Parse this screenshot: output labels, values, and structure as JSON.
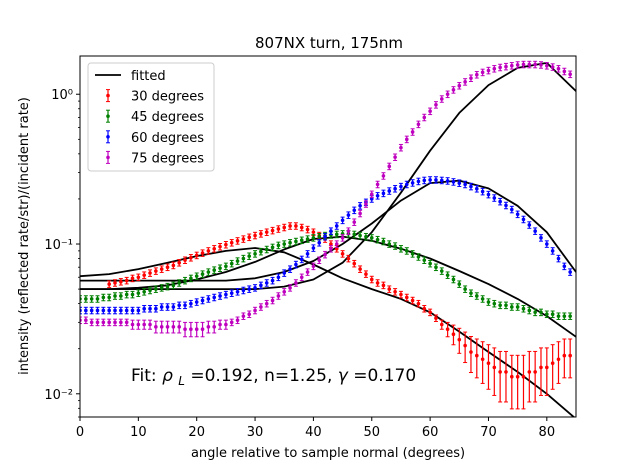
{
  "chart_data": {
    "type": "scatter",
    "title": "807NX turn, 175nm",
    "xlabel": "angle relative to sample normal (degrees)",
    "ylabel": "intensity (reflected rate/str)/(incident rate)",
    "xlim": [
      0,
      85
    ],
    "ylim": [
      0.007,
      1.8
    ],
    "yscale": "log",
    "xticks": [
      0,
      10,
      20,
      30,
      40,
      50,
      60,
      70,
      80
    ],
    "yticks": [
      {
        "value": 0.01,
        "label": "10⁻²"
      },
      {
        "value": 0.1,
        "label": "10⁻¹"
      },
      {
        "value": 1,
        "label": "10⁰"
      }
    ],
    "legend": {
      "position": "top-left",
      "entries": [
        "fitted",
        "30 degrees",
        "45 degrees",
        "60 degrees",
        "75 degrees"
      ]
    },
    "annotation": {
      "prefix": "Fit: ",
      "rho_symbol": "ρ",
      "rho_sub": "L",
      "rest1": "=0.192, n=1.25, ",
      "gamma_symbol": "γ",
      "rest2": "=0.170"
    },
    "colors": {
      "30": "#ff0000",
      "45": "#008000",
      "60": "#0000ff",
      "75": "#bf00bf",
      "fitted": "#000000"
    },
    "series": [
      {
        "name": "30 degrees",
        "color": "#ff0000",
        "x": [
          5,
          6,
          7,
          8,
          9,
          10,
          11,
          12,
          13,
          14,
          15,
          16,
          17,
          18,
          19,
          20,
          21,
          22,
          23,
          24,
          25,
          26,
          27,
          28,
          29,
          30,
          31,
          32,
          33,
          34,
          35,
          36,
          37,
          38,
          39,
          40,
          41,
          42,
          43,
          44,
          45,
          46,
          47,
          48,
          49,
          50,
          51,
          52,
          53,
          54,
          55,
          56,
          57,
          58,
          59,
          60,
          61,
          62,
          63,
          64,
          65,
          66,
          67,
          68,
          69,
          70,
          71,
          72,
          73,
          74,
          75,
          76,
          77,
          78,
          79,
          80,
          81,
          82,
          83,
          84
        ],
        "y": [
          0.054,
          0.055,
          0.056,
          0.057,
          0.059,
          0.06,
          0.062,
          0.064,
          0.066,
          0.068,
          0.07,
          0.072,
          0.075,
          0.078,
          0.081,
          0.084,
          0.087,
          0.09,
          0.093,
          0.096,
          0.099,
          0.102,
          0.105,
          0.108,
          0.111,
          0.114,
          0.117,
          0.12,
          0.123,
          0.126,
          0.129,
          0.132,
          0.132,
          0.129,
          0.125,
          0.12,
          0.114,
          0.108,
          0.1,
          0.093,
          0.086,
          0.08,
          0.074,
          0.068,
          0.063,
          0.058,
          0.055,
          0.053,
          0.05,
          0.048,
          0.046,
          0.044,
          0.042,
          0.04,
          0.037,
          0.035,
          0.032,
          0.029,
          0.027,
          0.025,
          0.023,
          0.021,
          0.019,
          0.018,
          0.017,
          0.016,
          0.015,
          0.014,
          0.014,
          0.013,
          0.013,
          0.013,
          0.014,
          0.014,
          0.015,
          0.015,
          0.016,
          0.017,
          0.018,
          0.018
        ]
      },
      {
        "name": "45 degrees",
        "color": "#008000",
        "x": [
          0,
          1,
          2,
          3,
          4,
          5,
          6,
          7,
          8,
          9,
          10,
          11,
          12,
          13,
          14,
          15,
          16,
          17,
          18,
          19,
          20,
          21,
          22,
          23,
          24,
          25,
          26,
          27,
          28,
          29,
          30,
          31,
          32,
          33,
          34,
          35,
          36,
          37,
          38,
          39,
          40,
          41,
          42,
          43,
          44,
          45,
          46,
          47,
          48,
          49,
          50,
          51,
          52,
          53,
          54,
          55,
          56,
          57,
          58,
          59,
          60,
          61,
          62,
          63,
          64,
          65,
          66,
          67,
          68,
          69,
          70,
          71,
          72,
          73,
          74,
          75,
          76,
          77,
          78,
          79,
          80,
          81,
          82,
          83,
          84
        ],
        "y": [
          0.043,
          0.043,
          0.043,
          0.043,
          0.044,
          0.044,
          0.045,
          0.045,
          0.046,
          0.046,
          0.047,
          0.048,
          0.049,
          0.05,
          0.051,
          0.052,
          0.053,
          0.055,
          0.057,
          0.059,
          0.061,
          0.063,
          0.065,
          0.067,
          0.069,
          0.071,
          0.074,
          0.077,
          0.08,
          0.083,
          0.086,
          0.089,
          0.092,
          0.095,
          0.098,
          0.1,
          0.102,
          0.104,
          0.106,
          0.108,
          0.11,
          0.112,
          0.114,
          0.115,
          0.116,
          0.117,
          0.117,
          0.116,
          0.114,
          0.112,
          0.11,
          0.107,
          0.104,
          0.1,
          0.097,
          0.093,
          0.09,
          0.086,
          0.082,
          0.078,
          0.074,
          0.07,
          0.066,
          0.062,
          0.058,
          0.054,
          0.05,
          0.047,
          0.045,
          0.043,
          0.041,
          0.04,
          0.039,
          0.039,
          0.038,
          0.038,
          0.037,
          0.036,
          0.035,
          0.035,
          0.034,
          0.034,
          0.033,
          0.033,
          0.033
        ]
      },
      {
        "name": "60 degrees",
        "color": "#0000ff",
        "x": [
          0,
          1,
          2,
          3,
          4,
          5,
          6,
          7,
          8,
          9,
          10,
          11,
          12,
          13,
          14,
          15,
          16,
          17,
          18,
          19,
          20,
          21,
          22,
          23,
          24,
          25,
          26,
          27,
          28,
          29,
          30,
          31,
          32,
          33,
          34,
          35,
          36,
          37,
          38,
          39,
          40,
          41,
          42,
          43,
          44,
          45,
          46,
          47,
          48,
          49,
          50,
          51,
          52,
          53,
          54,
          55,
          56,
          57,
          58,
          59,
          60,
          61,
          62,
          63,
          64,
          65,
          66,
          67,
          68,
          69,
          70,
          71,
          72,
          73,
          74,
          75,
          76,
          77,
          78,
          79,
          80,
          81,
          82,
          83,
          84
        ],
        "y": [
          0.036,
          0.036,
          0.036,
          0.036,
          0.036,
          0.036,
          0.036,
          0.036,
          0.036,
          0.036,
          0.036,
          0.037,
          0.037,
          0.037,
          0.038,
          0.038,
          0.038,
          0.039,
          0.039,
          0.04,
          0.041,
          0.042,
          0.043,
          0.044,
          0.045,
          0.046,
          0.047,
          0.048,
          0.049,
          0.05,
          0.051,
          0.053,
          0.055,
          0.057,
          0.06,
          0.064,
          0.068,
          0.073,
          0.079,
          0.086,
          0.094,
          0.102,
          0.112,
          0.122,
          0.132,
          0.144,
          0.156,
          0.168,
          0.18,
          0.19,
          0.2,
          0.21,
          0.218,
          0.226,
          0.234,
          0.242,
          0.25,
          0.256,
          0.262,
          0.266,
          0.268,
          0.268,
          0.266,
          0.264,
          0.26,
          0.255,
          0.25,
          0.242,
          0.234,
          0.224,
          0.214,
          0.203,
          0.192,
          0.181,
          0.17,
          0.158,
          0.146,
          0.134,
          0.122,
          0.11,
          0.1,
          0.09,
          0.08,
          0.071,
          0.065
        ]
      },
      {
        "name": "75 degrees",
        "color": "#bf00bf",
        "x": [
          0,
          1,
          2,
          3,
          4,
          5,
          6,
          7,
          8,
          9,
          10,
          11,
          12,
          13,
          14,
          15,
          16,
          17,
          18,
          19,
          20,
          21,
          22,
          23,
          24,
          25,
          26,
          27,
          28,
          29,
          30,
          31,
          32,
          33,
          34,
          35,
          36,
          37,
          38,
          39,
          40,
          41,
          42,
          43,
          44,
          45,
          46,
          47,
          48,
          49,
          50,
          51,
          52,
          53,
          54,
          55,
          56,
          57,
          58,
          59,
          60,
          61,
          62,
          63,
          64,
          65,
          66,
          67,
          68,
          69,
          70,
          71,
          72,
          73,
          74,
          75,
          76,
          77,
          78,
          79,
          80,
          81,
          82,
          83,
          84
        ],
        "y": [
          0.031,
          0.031,
          0.03,
          0.03,
          0.03,
          0.03,
          0.03,
          0.03,
          0.03,
          0.029,
          0.029,
          0.029,
          0.029,
          0.028,
          0.028,
          0.028,
          0.028,
          0.028,
          0.027,
          0.027,
          0.027,
          0.027,
          0.028,
          0.028,
          0.029,
          0.029,
          0.03,
          0.031,
          0.033,
          0.034,
          0.036,
          0.038,
          0.04,
          0.042,
          0.045,
          0.048,
          0.051,
          0.055,
          0.06,
          0.065,
          0.071,
          0.078,
          0.085,
          0.093,
          0.1,
          0.11,
          0.122,
          0.14,
          0.16,
          0.185,
          0.215,
          0.25,
          0.285,
          0.33,
          0.38,
          0.44,
          0.5,
          0.56,
          0.63,
          0.7,
          0.77,
          0.85,
          0.93,
          1.0,
          1.07,
          1.14,
          1.21,
          1.28,
          1.35,
          1.4,
          1.44,
          1.48,
          1.51,
          1.53,
          1.55,
          1.57,
          1.58,
          1.58,
          1.58,
          1.57,
          1.55,
          1.52,
          1.48,
          1.42,
          1.36
        ]
      }
    ],
    "fitted": [
      {
        "x": [
          0,
          5,
          10,
          15,
          20,
          25,
          30,
          35,
          40,
          45,
          50,
          55,
          60,
          65,
          70,
          75,
          80,
          85
        ],
        "y": [
          0.061,
          0.063,
          0.068,
          0.075,
          0.083,
          0.09,
          0.094,
          0.088,
          0.073,
          0.059,
          0.05,
          0.043,
          0.035,
          0.026,
          0.019,
          0.014,
          0.01,
          0.0068
        ]
      },
      {
        "x": [
          0,
          5,
          10,
          15,
          20,
          25,
          30,
          35,
          40,
          45,
          50,
          55,
          60,
          65,
          70,
          75,
          80,
          85
        ],
        "y": [
          0.05,
          0.05,
          0.051,
          0.053,
          0.058,
          0.065,
          0.076,
          0.092,
          0.108,
          0.112,
          0.105,
          0.093,
          0.08,
          0.066,
          0.054,
          0.043,
          0.033,
          0.024
        ]
      },
      {
        "x": [
          0,
          5,
          10,
          15,
          20,
          25,
          30,
          35,
          40,
          45,
          50,
          55,
          60,
          65,
          70,
          75,
          80,
          85
        ],
        "y": [
          0.057,
          0.057,
          0.057,
          0.057,
          0.057,
          0.057,
          0.059,
          0.065,
          0.077,
          0.1,
          0.137,
          0.195,
          0.255,
          0.265,
          0.235,
          0.18,
          0.12,
          0.065
        ]
      },
      {
        "x": [
          0,
          5,
          10,
          15,
          20,
          25,
          30,
          35,
          40,
          45,
          50,
          55,
          60,
          65,
          70,
          75,
          80,
          85
        ],
        "y": [
          0.05,
          0.05,
          0.05,
          0.05,
          0.05,
          0.05,
          0.05,
          0.052,
          0.058,
          0.075,
          0.12,
          0.22,
          0.42,
          0.75,
          1.15,
          1.5,
          1.62,
          1.05
        ]
      }
    ]
  }
}
